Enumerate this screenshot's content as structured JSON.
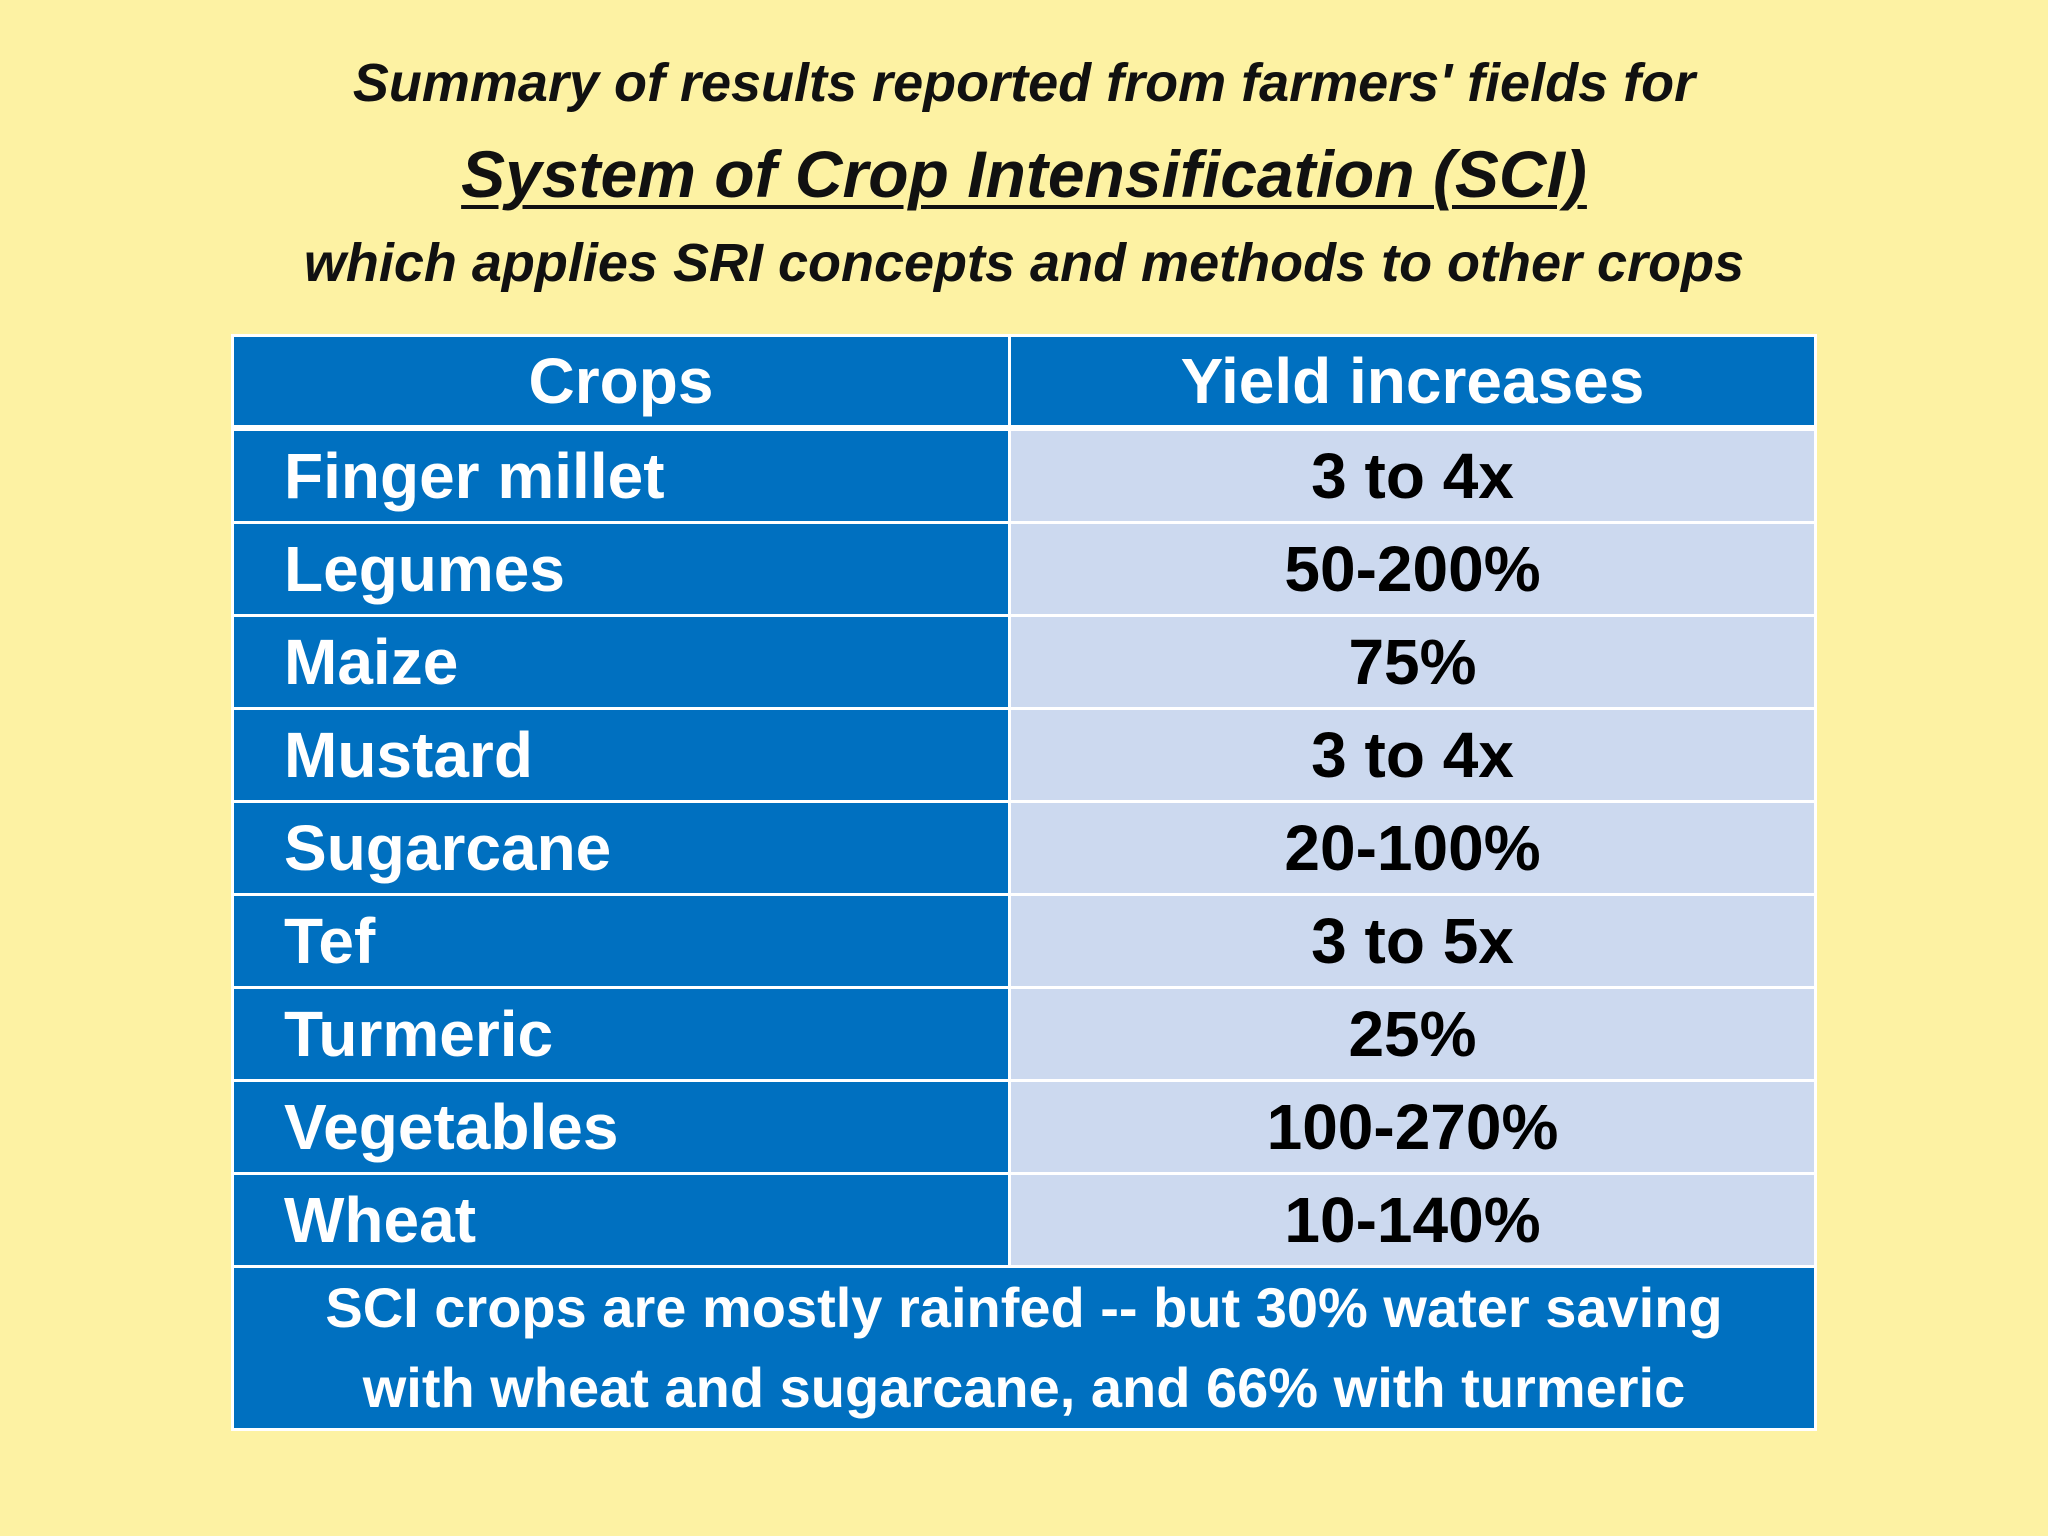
{
  "title": {
    "line1": "Summary of results reported from farmers' fields for",
    "line2": "System of Crop Intensification (SCI)",
    "line3": "which applies SRI concepts and methods to other crops"
  },
  "table": {
    "headers": [
      "Crops",
      "Yield  increases"
    ],
    "rows": [
      {
        "crop": "Finger millet",
        "yield": "3 to 4x"
      },
      {
        "crop": "Legumes",
        "yield": "50-200%"
      },
      {
        "crop": "Maize",
        "yield": "75%"
      },
      {
        "crop": "Mustard",
        "yield": "3 to 4x"
      },
      {
        "crop": "Sugarcane",
        "yield": "20-100%"
      },
      {
        "crop": "Tef",
        "yield": "3 to 5x"
      },
      {
        "crop": "Turmeric",
        "yield": "25%"
      },
      {
        "crop": "Vegetables",
        "yield": "100-270%"
      },
      {
        "crop": "Wheat",
        "yield": "10-140%"
      }
    ],
    "footer_line1": "SCI crops are mostly rainfed -- but 30% water saving",
    "footer_line2": "with  wheat and sugarcane, and 66% with turmeric"
  },
  "colors": {
    "background": "#FDF2A3",
    "blue": "#0070C0",
    "light_blue": "#CCD9EF"
  }
}
